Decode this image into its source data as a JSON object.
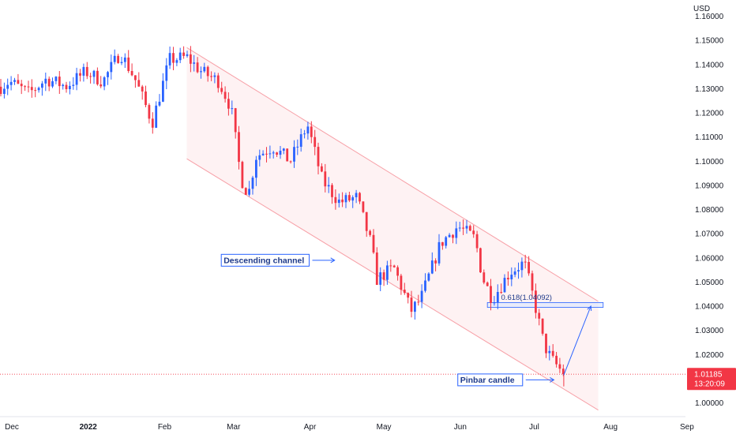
{
  "chart_data": {
    "type": "candlestick",
    "currency": "USD",
    "ylim": [
      0.993,
      1.163
    ],
    "y_ticks": [
      "1.16000",
      "1.15000",
      "1.14000",
      "1.13000",
      "1.12000",
      "1.11000",
      "1.10000",
      "1.09000",
      "1.08000",
      "1.07000",
      "1.06000",
      "1.05000",
      "1.04000",
      "1.03000",
      "1.02000",
      "1.01000",
      "1.00000"
    ],
    "x_ticks": [
      {
        "label": "Dec",
        "date": "2021-12-01",
        "bold": false
      },
      {
        "label": "2022",
        "date": "2022-01-01",
        "bold": true
      },
      {
        "label": "Feb",
        "date": "2022-02-01",
        "bold": false
      },
      {
        "label": "Mar",
        "date": "2022-03-01",
        "bold": false
      },
      {
        "label": "Apr",
        "date": "2022-04-01",
        "bold": false
      },
      {
        "label": "May",
        "date": "2022-05-01",
        "bold": false
      },
      {
        "label": "Jun",
        "date": "2022-06-01",
        "bold": false
      },
      {
        "label": "Jul",
        "date": "2022-07-01",
        "bold": false
      },
      {
        "label": "Aug",
        "date": "2022-08-01",
        "bold": false
      },
      {
        "label": "Sep",
        "date": "2022-09-01",
        "bold": false
      }
    ],
    "current_price": "1.01185",
    "countdown": "13:20:09",
    "colors": {
      "up": "#2962ff",
      "down": "#f23645",
      "channel": "#f7a1a8",
      "channel_fill": "#fde8ea",
      "price_line": "#f23645"
    },
    "close_path": [
      [
        "2021-11-22",
        1.128
      ],
      [
        "2021-11-30",
        1.133
      ],
      [
        "2021-12-08",
        1.128
      ],
      [
        "2021-12-15",
        1.134
      ],
      [
        "2021-12-23",
        1.131
      ],
      [
        "2021-12-31",
        1.137
      ],
      [
        "2022-01-07",
        1.133
      ],
      [
        "2022-01-14",
        1.145
      ],
      [
        "2022-01-20",
        1.134
      ],
      [
        "2022-01-27",
        1.116
      ],
      [
        "2022-02-03",
        1.142
      ],
      [
        "2022-02-10",
        1.143
      ],
      [
        "2022-02-16",
        1.137
      ],
      [
        "2022-02-23",
        1.133
      ],
      [
        "2022-02-28",
        1.122
      ],
      [
        "2022-03-04",
        1.093
      ],
      [
        "2022-03-07",
        1.086
      ],
      [
        "2022-03-10",
        1.102
      ],
      [
        "2022-03-17",
        1.106
      ],
      [
        "2022-03-24",
        1.1
      ],
      [
        "2022-03-31",
        1.115
      ],
      [
        "2022-04-06",
        1.092
      ],
      [
        "2022-04-13",
        1.083
      ],
      [
        "2022-04-20",
        1.085
      ],
      [
        "2022-04-26",
        1.065
      ],
      [
        "2022-04-28",
        1.051
      ],
      [
        "2022-05-05",
        1.056
      ],
      [
        "2022-05-12",
        1.038
      ],
      [
        "2022-05-16",
        1.043
      ],
      [
        "2022-05-24",
        1.066
      ],
      [
        "2022-05-31",
        1.073
      ],
      [
        "2022-06-07",
        1.068
      ],
      [
        "2022-06-10",
        1.052
      ],
      [
        "2022-06-14",
        1.043
      ],
      [
        "2022-06-21",
        1.054
      ],
      [
        "2022-06-27",
        1.058
      ],
      [
        "2022-07-01",
        1.042
      ],
      [
        "2022-07-05",
        1.024
      ],
      [
        "2022-07-08",
        1.018
      ],
      [
        "2022-07-13",
        1.012
      ]
    ],
    "channel": {
      "upper": [
        [
          "2022-02-10",
          1.147
        ],
        [
          "2022-07-27",
          1.042
        ]
      ],
      "lower": [
        [
          "2022-02-10",
          1.101
        ],
        [
          "2022-07-27",
          0.997
        ]
      ]
    },
    "fib_zone": {
      "from": "2022-06-12",
      "to": "2022-07-29",
      "high": 1.0415,
      "low": 1.0395
    },
    "annotations": [
      {
        "id": "descending-channel",
        "text": "Descending channel",
        "date": "2022-02-24",
        "price": 1.059,
        "arrow_to": [
          "2022-04-11",
          1.059
        ]
      },
      {
        "id": "fib-level",
        "text": "0.618(1.04092)",
        "date": "2022-06-15",
        "price": 1.043
      },
      {
        "id": "pinbar",
        "text": "Pinbar candle",
        "date": "2022-05-31",
        "price": 1.0095,
        "arrow_to": [
          "2022-07-09",
          1.0095
        ]
      }
    ],
    "projection_arrow": [
      [
        "2022-07-13",
        1.0115
      ],
      [
        "2022-07-24",
        1.04
      ]
    ]
  }
}
